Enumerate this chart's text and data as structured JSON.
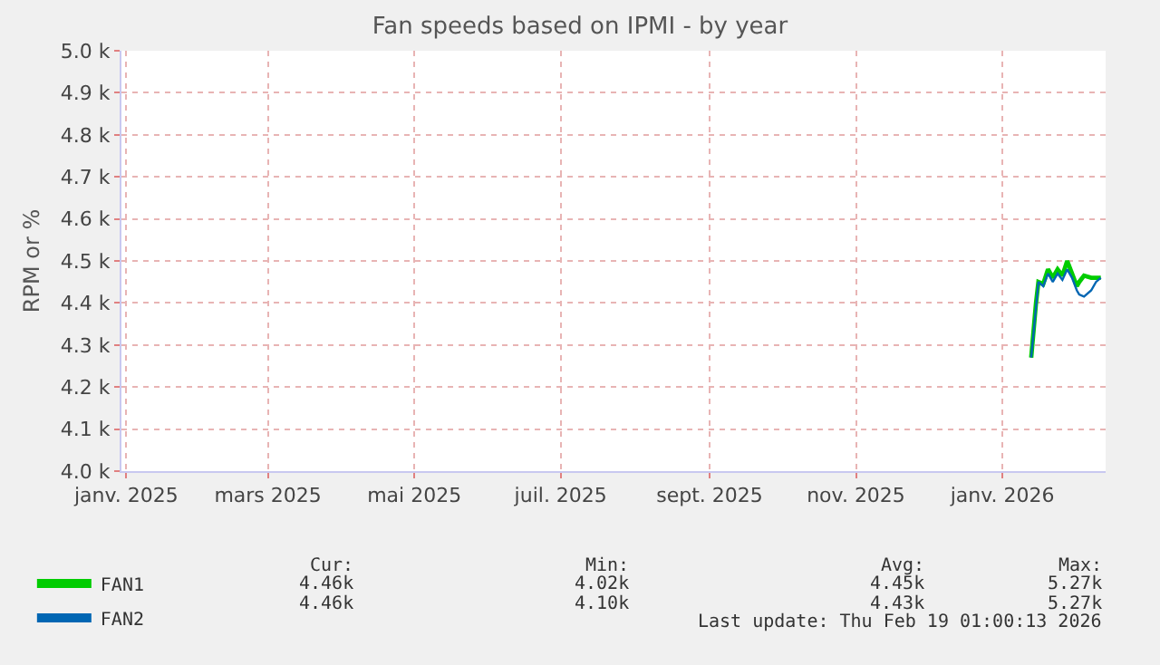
{
  "chart_data": {
    "type": "line",
    "title": "Fan speeds based on IPMI - by year",
    "ylabel": "RPM or %",
    "x": [
      "2026-01-13",
      "2026-01-15",
      "2026-01-16",
      "2026-01-18",
      "2026-01-20",
      "2026-01-22",
      "2026-01-24",
      "2026-01-26",
      "2026-01-28",
      "2026-01-30",
      "2026-02-01",
      "2026-02-02",
      "2026-02-04",
      "2026-02-07",
      "2026-02-09",
      "2026-02-11"
    ],
    "series": [
      {
        "name": "FAN1",
        "color": "#00cc00",
        "values": [
          4.27,
          4.4,
          4.45,
          4.445,
          4.48,
          4.46,
          4.48,
          4.465,
          4.5,
          4.47,
          4.44,
          4.45,
          4.465,
          4.46,
          4.46,
          4.46
        ]
      },
      {
        "name": "FAN2",
        "color": "#0066b3",
        "values": [
          4.27,
          4.39,
          4.45,
          4.44,
          4.47,
          4.45,
          4.47,
          4.455,
          4.48,
          4.46,
          4.43,
          4.42,
          4.415,
          4.43,
          4.45,
          4.46
        ]
      }
    ],
    "xlim": [
      "2024-12-30",
      "2026-02-13"
    ],
    "xticks": [
      {
        "value": "2025-01-01",
        "label": "janv. 2025"
      },
      {
        "value": "2025-03-01",
        "label": "mars 2025"
      },
      {
        "value": "2025-05-01",
        "label": "mai 2025"
      },
      {
        "value": "2025-07-01",
        "label": "juil. 2025"
      },
      {
        "value": "2025-09-01",
        "label": "sept. 2025"
      },
      {
        "value": "2025-11-01",
        "label": "nov. 2025"
      },
      {
        "value": "2026-01-01",
        "label": "janv. 2026"
      }
    ],
    "ylim": [
      4.0,
      5.0
    ],
    "yticks": [
      {
        "value": 4.0,
        "label": "4.0 k"
      },
      {
        "value": 4.1,
        "label": "4.1 k"
      },
      {
        "value": 4.2,
        "label": "4.2 k"
      },
      {
        "value": 4.3,
        "label": "4.3 k"
      },
      {
        "value": 4.4,
        "label": "4.4 k"
      },
      {
        "value": 4.5,
        "label": "4.5 k"
      },
      {
        "value": 4.6,
        "label": "4.6 k"
      },
      {
        "value": 4.7,
        "label": "4.7 k"
      },
      {
        "value": 4.8,
        "label": "4.8 k"
      },
      {
        "value": 4.9,
        "label": "4.9 k"
      },
      {
        "value": 5.0,
        "label": "5.0 k"
      }
    ],
    "grid": true,
    "legend": "bottom left",
    "marker": "none",
    "line_style": "solid",
    "annotations": [
      "Cur:",
      "Min:",
      "Avg:",
      "Max:",
      "4.46k",
      "4.02k",
      "4.45k",
      "5.27k",
      "4.46k",
      "4.10k",
      "4.43k",
      "5.27k",
      "Last update: Thu Feb 19 01:00:13 2026"
    ]
  }
}
